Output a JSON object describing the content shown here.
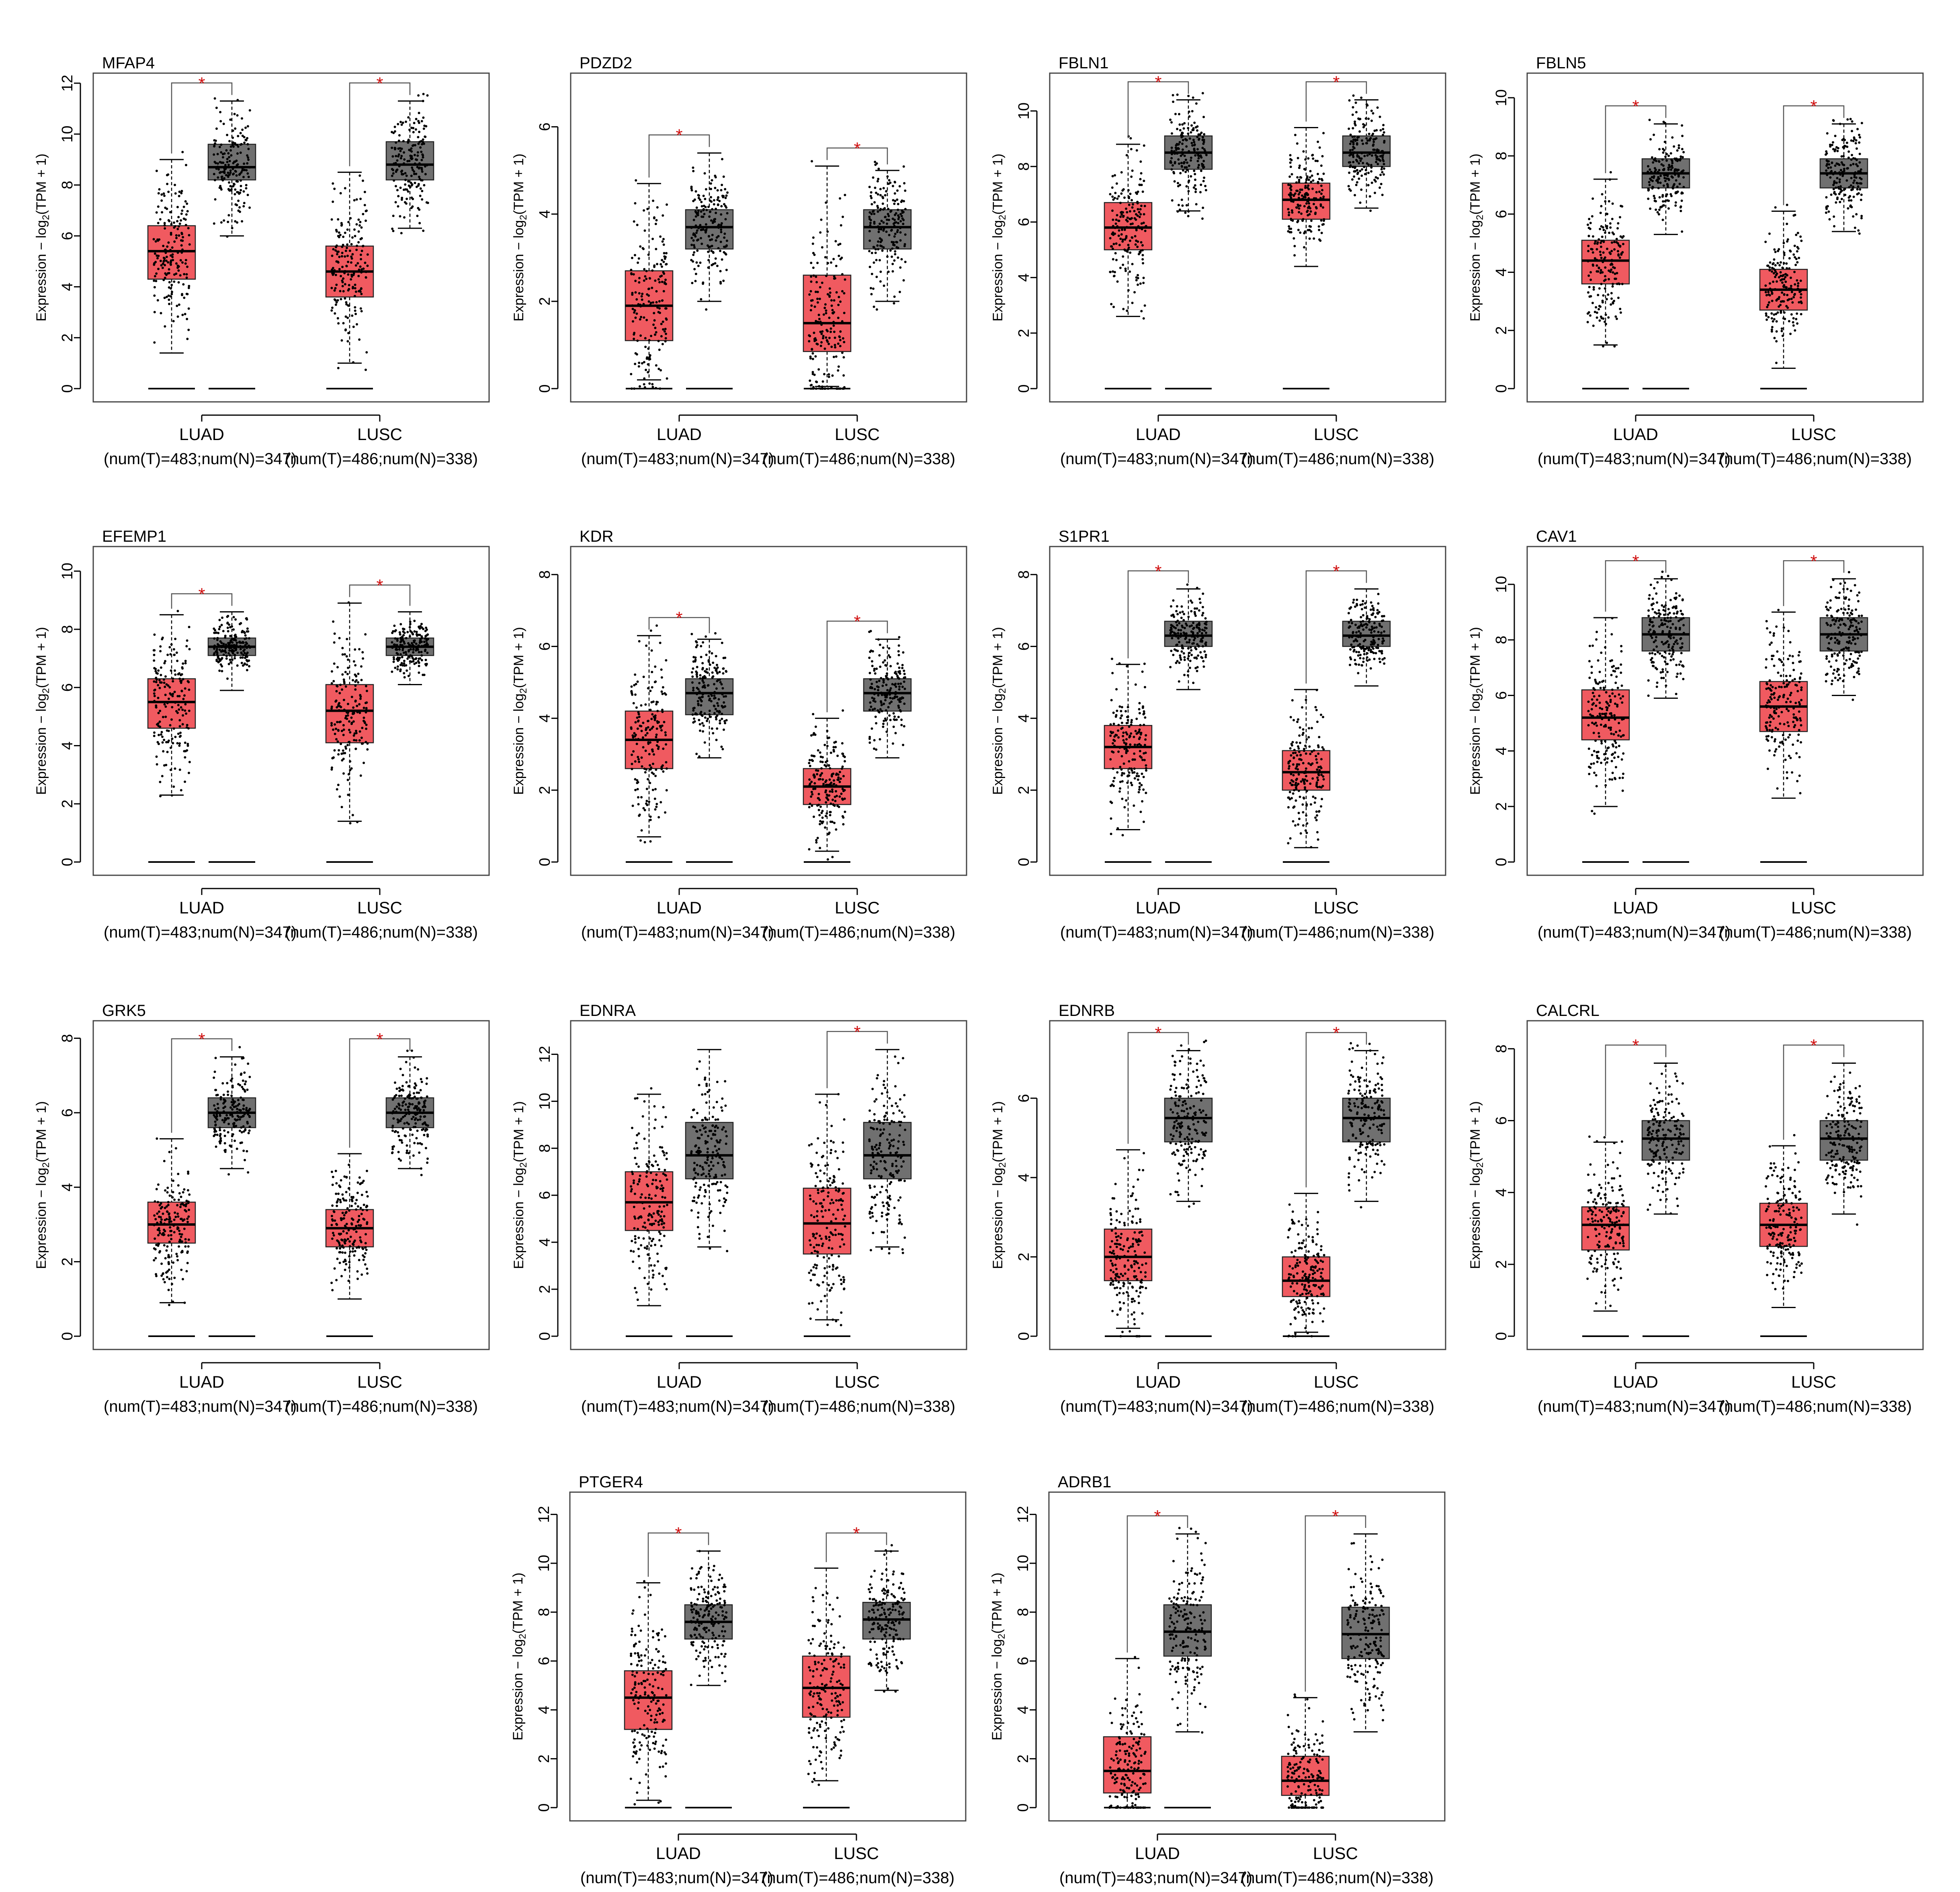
{
  "figure": {
    "ylabel_prefix": "Expression − log",
    "ylabel_sub": "2",
    "ylabel_suffix": "(TPM + 1)",
    "sig_marker": "*",
    "tumor_color": "#f05a60",
    "normal_color": "#707070",
    "group_info": [
      "(num(T)=483;num(N)=347)",
      "(num(T)=486;num(N)=338)"
    ]
  },
  "chart_data": [
    {
      "type": "box",
      "title": "MFAP4",
      "categories": [
        "LUAD",
        "LUSC"
      ],
      "ylim": [
        0,
        12
      ],
      "yticks": [
        0,
        2,
        4,
        6,
        8,
        10,
        12
      ],
      "series": [
        {
          "group": "LUAD",
          "tumor": {
            "min": 1.4,
            "q1": 4.3,
            "median": 5.4,
            "q3": 6.4,
            "max": 9.0
          },
          "normal": {
            "min": 6.0,
            "q1": 8.2,
            "median": 8.7,
            "q3": 9.6,
            "max": 11.3
          },
          "significant": true
        },
        {
          "group": "LUSC",
          "tumor": {
            "min": 1.0,
            "q1": 3.6,
            "median": 4.6,
            "q3": 5.6,
            "max": 8.5
          },
          "normal": {
            "min": 6.3,
            "q1": 8.2,
            "median": 8.8,
            "q3": 9.7,
            "max": 11.3
          },
          "significant": true
        }
      ]
    },
    {
      "type": "box",
      "title": "PDZD2",
      "categories": [
        "LUAD",
        "LUSC"
      ],
      "ylim": [
        0,
        7
      ],
      "yticks": [
        0,
        2,
        4,
        6
      ],
      "series": [
        {
          "group": "LUAD",
          "tumor": {
            "min": 0.2,
            "q1": 1.1,
            "median": 1.9,
            "q3": 2.7,
            "max": 4.7
          },
          "normal": {
            "min": 2.0,
            "q1": 3.2,
            "median": 3.7,
            "q3": 4.1,
            "max": 5.4
          },
          "significant": true
        },
        {
          "group": "LUSC",
          "tumor": {
            "min": 0.05,
            "q1": 0.85,
            "median": 1.5,
            "q3": 2.6,
            "max": 5.1
          },
          "normal": {
            "min": 2.0,
            "q1": 3.2,
            "median": 3.7,
            "q3": 4.1,
            "max": 5.0
          },
          "significant": true
        }
      ]
    },
    {
      "type": "box",
      "title": "FBLN1",
      "categories": [
        "LUAD",
        "LUSC"
      ],
      "ylim": [
        0,
        11
      ],
      "yticks": [
        0,
        2,
        4,
        6,
        8,
        10
      ],
      "series": [
        {
          "group": "LUAD",
          "tumor": {
            "min": 2.6,
            "q1": 5.0,
            "median": 5.8,
            "q3": 6.7,
            "max": 8.8
          },
          "normal": {
            "min": 6.4,
            "q1": 7.9,
            "median": 8.5,
            "q3": 9.1,
            "max": 10.4
          },
          "significant": true
        },
        {
          "group": "LUSC",
          "tumor": {
            "min": 4.4,
            "q1": 6.1,
            "median": 6.8,
            "q3": 7.4,
            "max": 9.4
          },
          "normal": {
            "min": 6.5,
            "q1": 8.0,
            "median": 8.5,
            "q3": 9.1,
            "max": 10.4
          },
          "significant": true
        }
      ]
    },
    {
      "type": "box",
      "title": "FBLN5",
      "categories": [
        "LUAD",
        "LUSC"
      ],
      "ylim": [
        0,
        10.5
      ],
      "yticks": [
        0,
        2,
        4,
        6,
        8,
        10
      ],
      "series": [
        {
          "group": "LUAD",
          "tumor": {
            "min": 1.5,
            "q1": 3.6,
            "median": 4.4,
            "q3": 5.1,
            "max": 7.2
          },
          "normal": {
            "min": 5.3,
            "q1": 6.9,
            "median": 7.4,
            "q3": 7.9,
            "max": 9.1
          },
          "significant": true
        },
        {
          "group": "LUSC",
          "tumor": {
            "min": 0.7,
            "q1": 2.7,
            "median": 3.4,
            "q3": 4.1,
            "max": 6.1
          },
          "normal": {
            "min": 5.4,
            "q1": 6.9,
            "median": 7.4,
            "q3": 7.9,
            "max": 9.1
          },
          "significant": true
        }
      ]
    },
    {
      "type": "box",
      "title": "EFEMP1",
      "categories": [
        "LUAD",
        "LUSC"
      ],
      "ylim": [
        0,
        10.5
      ],
      "yticks": [
        0,
        2,
        4,
        6,
        8,
        10
      ],
      "series": [
        {
          "group": "LUAD",
          "tumor": {
            "min": 2.3,
            "q1": 4.6,
            "median": 5.5,
            "q3": 6.3,
            "max": 8.5
          },
          "normal": {
            "min": 5.9,
            "q1": 7.1,
            "median": 7.4,
            "q3": 7.7,
            "max": 8.6
          },
          "significant": true
        },
        {
          "group": "LUSC",
          "tumor": {
            "min": 1.4,
            "q1": 4.1,
            "median": 5.2,
            "q3": 6.1,
            "max": 8.9
          },
          "normal": {
            "min": 6.1,
            "q1": 7.1,
            "median": 7.4,
            "q3": 7.7,
            "max": 8.6
          },
          "significant": true
        }
      ]
    },
    {
      "type": "box",
      "title": "KDR",
      "categories": [
        "LUAD",
        "LUSC"
      ],
      "ylim": [
        0,
        8.5
      ],
      "yticks": [
        0,
        2,
        4,
        6,
        8
      ],
      "series": [
        {
          "group": "LUAD",
          "tumor": {
            "min": 0.7,
            "q1": 2.6,
            "median": 3.4,
            "q3": 4.2,
            "max": 6.3
          },
          "normal": {
            "min": 2.9,
            "q1": 4.1,
            "median": 4.7,
            "q3": 5.1,
            "max": 6.2
          },
          "significant": true
        },
        {
          "group": "LUSC",
          "tumor": {
            "min": 0.3,
            "q1": 1.6,
            "median": 2.1,
            "q3": 2.6,
            "max": 4.0
          },
          "normal": {
            "min": 2.9,
            "q1": 4.2,
            "median": 4.7,
            "q3": 5.1,
            "max": 6.2
          },
          "significant": true
        }
      ]
    },
    {
      "type": "box",
      "title": "S1PR1",
      "categories": [
        "LUAD",
        "LUSC"
      ],
      "ylim": [
        0,
        8.5
      ],
      "yticks": [
        0,
        2,
        4,
        6,
        8
      ],
      "series": [
        {
          "group": "LUAD",
          "tumor": {
            "min": 0.9,
            "q1": 2.6,
            "median": 3.2,
            "q3": 3.8,
            "max": 5.5
          },
          "normal": {
            "min": 4.8,
            "q1": 6.0,
            "median": 6.3,
            "q3": 6.7,
            "max": 7.6
          },
          "significant": true
        },
        {
          "group": "LUSC",
          "tumor": {
            "min": 0.4,
            "q1": 2.0,
            "median": 2.5,
            "q3": 3.1,
            "max": 4.8
          },
          "normal": {
            "min": 4.9,
            "q1": 6.0,
            "median": 6.3,
            "q3": 6.7,
            "max": 7.6
          },
          "significant": true
        }
      ]
    },
    {
      "type": "box",
      "title": "CAV1",
      "categories": [
        "LUAD",
        "LUSC"
      ],
      "ylim": [
        0,
        11
      ],
      "yticks": [
        0,
        2,
        4,
        6,
        8,
        10
      ],
      "series": [
        {
          "group": "LUAD",
          "tumor": {
            "min": 2.0,
            "q1": 4.4,
            "median": 5.2,
            "q3": 6.2,
            "max": 8.8
          },
          "normal": {
            "min": 5.9,
            "q1": 7.6,
            "median": 8.2,
            "q3": 8.8,
            "max": 10.2
          },
          "significant": true
        },
        {
          "group": "LUSC",
          "tumor": {
            "min": 2.3,
            "q1": 4.7,
            "median": 5.6,
            "q3": 6.5,
            "max": 9.0
          },
          "normal": {
            "min": 6.0,
            "q1": 7.6,
            "median": 8.2,
            "q3": 8.8,
            "max": 10.2
          },
          "significant": true
        }
      ]
    },
    {
      "type": "box",
      "title": "GRK5",
      "categories": [
        "LUAD",
        "LUSC"
      ],
      "ylim": [
        0,
        8.2
      ],
      "yticks": [
        0,
        2,
        4,
        6,
        8
      ],
      "series": [
        {
          "group": "LUAD",
          "tumor": {
            "min": 0.9,
            "q1": 2.5,
            "median": 3.0,
            "q3": 3.6,
            "max": 5.3
          },
          "normal": {
            "min": 4.5,
            "q1": 5.6,
            "median": 6.0,
            "q3": 6.4,
            "max": 7.5
          },
          "significant": true
        },
        {
          "group": "LUSC",
          "tumor": {
            "min": 1.0,
            "q1": 2.4,
            "median": 2.9,
            "q3": 3.4,
            "max": 4.9
          },
          "normal": {
            "min": 4.5,
            "q1": 5.6,
            "median": 6.0,
            "q3": 6.4,
            "max": 7.5
          },
          "significant": true
        }
      ]
    },
    {
      "type": "box",
      "title": "EDNRA",
      "categories": [
        "LUAD",
        "LUSC"
      ],
      "ylim": [
        0,
        13
      ],
      "yticks": [
        0,
        2,
        4,
        6,
        8,
        10,
        12
      ],
      "series": [
        {
          "group": "LUAD",
          "tumor": {
            "min": 1.3,
            "q1": 4.5,
            "median": 5.7,
            "q3": 7.0,
            "max": 10.3
          },
          "normal": {
            "min": 3.8,
            "q1": 6.7,
            "median": 7.7,
            "q3": 9.1,
            "max": 12.2
          },
          "significant": false
        },
        {
          "group": "LUSC",
          "tumor": {
            "min": 0.7,
            "q1": 3.5,
            "median": 4.8,
            "q3": 6.3,
            "max": 10.3
          },
          "normal": {
            "min": 3.8,
            "q1": 6.7,
            "median": 7.7,
            "q3": 9.1,
            "max": 12.2
          },
          "significant": true
        }
      ]
    },
    {
      "type": "box",
      "title": "EDNRB",
      "categories": [
        "LUAD",
        "LUSC"
      ],
      "ylim": [
        0,
        7.7
      ],
      "yticks": [
        0,
        2,
        4,
        6
      ],
      "series": [
        {
          "group": "LUAD",
          "tumor": {
            "min": 0.2,
            "q1": 1.4,
            "median": 2.0,
            "q3": 2.7,
            "max": 4.7
          },
          "normal": {
            "min": 3.4,
            "q1": 4.9,
            "median": 5.5,
            "q3": 6.0,
            "max": 7.2
          },
          "significant": true
        },
        {
          "group": "LUSC",
          "tumor": {
            "min": 0.1,
            "q1": 1.0,
            "median": 1.4,
            "q3": 2.0,
            "max": 3.6
          },
          "normal": {
            "min": 3.4,
            "q1": 4.9,
            "median": 5.5,
            "q3": 6.0,
            "max": 7.2
          },
          "significant": true
        }
      ]
    },
    {
      "type": "box",
      "title": "CALCRL",
      "categories": [
        "LUAD",
        "LUSC"
      ],
      "ylim": [
        0,
        8.5
      ],
      "yticks": [
        0,
        2,
        4,
        6,
        8
      ],
      "series": [
        {
          "group": "LUAD",
          "tumor": {
            "min": 0.7,
            "q1": 2.4,
            "median": 3.1,
            "q3": 3.6,
            "max": 5.4
          },
          "normal": {
            "min": 3.4,
            "q1": 4.9,
            "median": 5.5,
            "q3": 6.0,
            "max": 7.6
          },
          "significant": true
        },
        {
          "group": "LUSC",
          "tumor": {
            "min": 0.8,
            "q1": 2.5,
            "median": 3.1,
            "q3": 3.7,
            "max": 5.3
          },
          "normal": {
            "min": 3.4,
            "q1": 4.9,
            "median": 5.5,
            "q3": 6.0,
            "max": 7.6
          },
          "significant": true
        }
      ]
    },
    {
      "type": "box",
      "title": "PTGER4",
      "categories": [
        "LUAD",
        "LUSC"
      ],
      "ylim": [
        0,
        12.5
      ],
      "yticks": [
        0,
        2,
        4,
        6,
        8,
        10,
        12
      ],
      "series": [
        {
          "group": "LUAD",
          "tumor": {
            "min": 0.3,
            "q1": 3.2,
            "median": 4.5,
            "q3": 5.6,
            "max": 9.2
          },
          "normal": {
            "min": 5.0,
            "q1": 6.9,
            "median": 7.6,
            "q3": 8.3,
            "max": 10.5
          },
          "significant": true
        },
        {
          "group": "LUSC",
          "tumor": {
            "min": 1.1,
            "q1": 3.7,
            "median": 4.9,
            "q3": 6.2,
            "max": 9.8
          },
          "normal": {
            "min": 4.8,
            "q1": 6.9,
            "median": 7.7,
            "q3": 8.4,
            "max": 10.5
          },
          "significant": true
        }
      ]
    },
    {
      "type": "box",
      "title": "ADRB1",
      "categories": [
        "LUAD",
        "LUSC"
      ],
      "ylim": [
        0,
        12.5
      ],
      "yticks": [
        0,
        2,
        4,
        6,
        8,
        10,
        12
      ],
      "series": [
        {
          "group": "LUAD",
          "tumor": {
            "min": 0.0,
            "q1": 0.6,
            "median": 1.5,
            "q3": 2.9,
            "max": 6.1
          },
          "normal": {
            "min": 3.1,
            "q1": 6.2,
            "median": 7.2,
            "q3": 8.3,
            "max": 11.2
          },
          "significant": true
        },
        {
          "group": "LUSC",
          "tumor": {
            "min": 0.0,
            "q1": 0.5,
            "median": 1.1,
            "q3": 2.1,
            "max": 4.5
          },
          "normal": {
            "min": 3.1,
            "q1": 6.1,
            "median": 7.1,
            "q3": 8.2,
            "max": 11.2
          },
          "significant": true
        }
      ]
    }
  ]
}
